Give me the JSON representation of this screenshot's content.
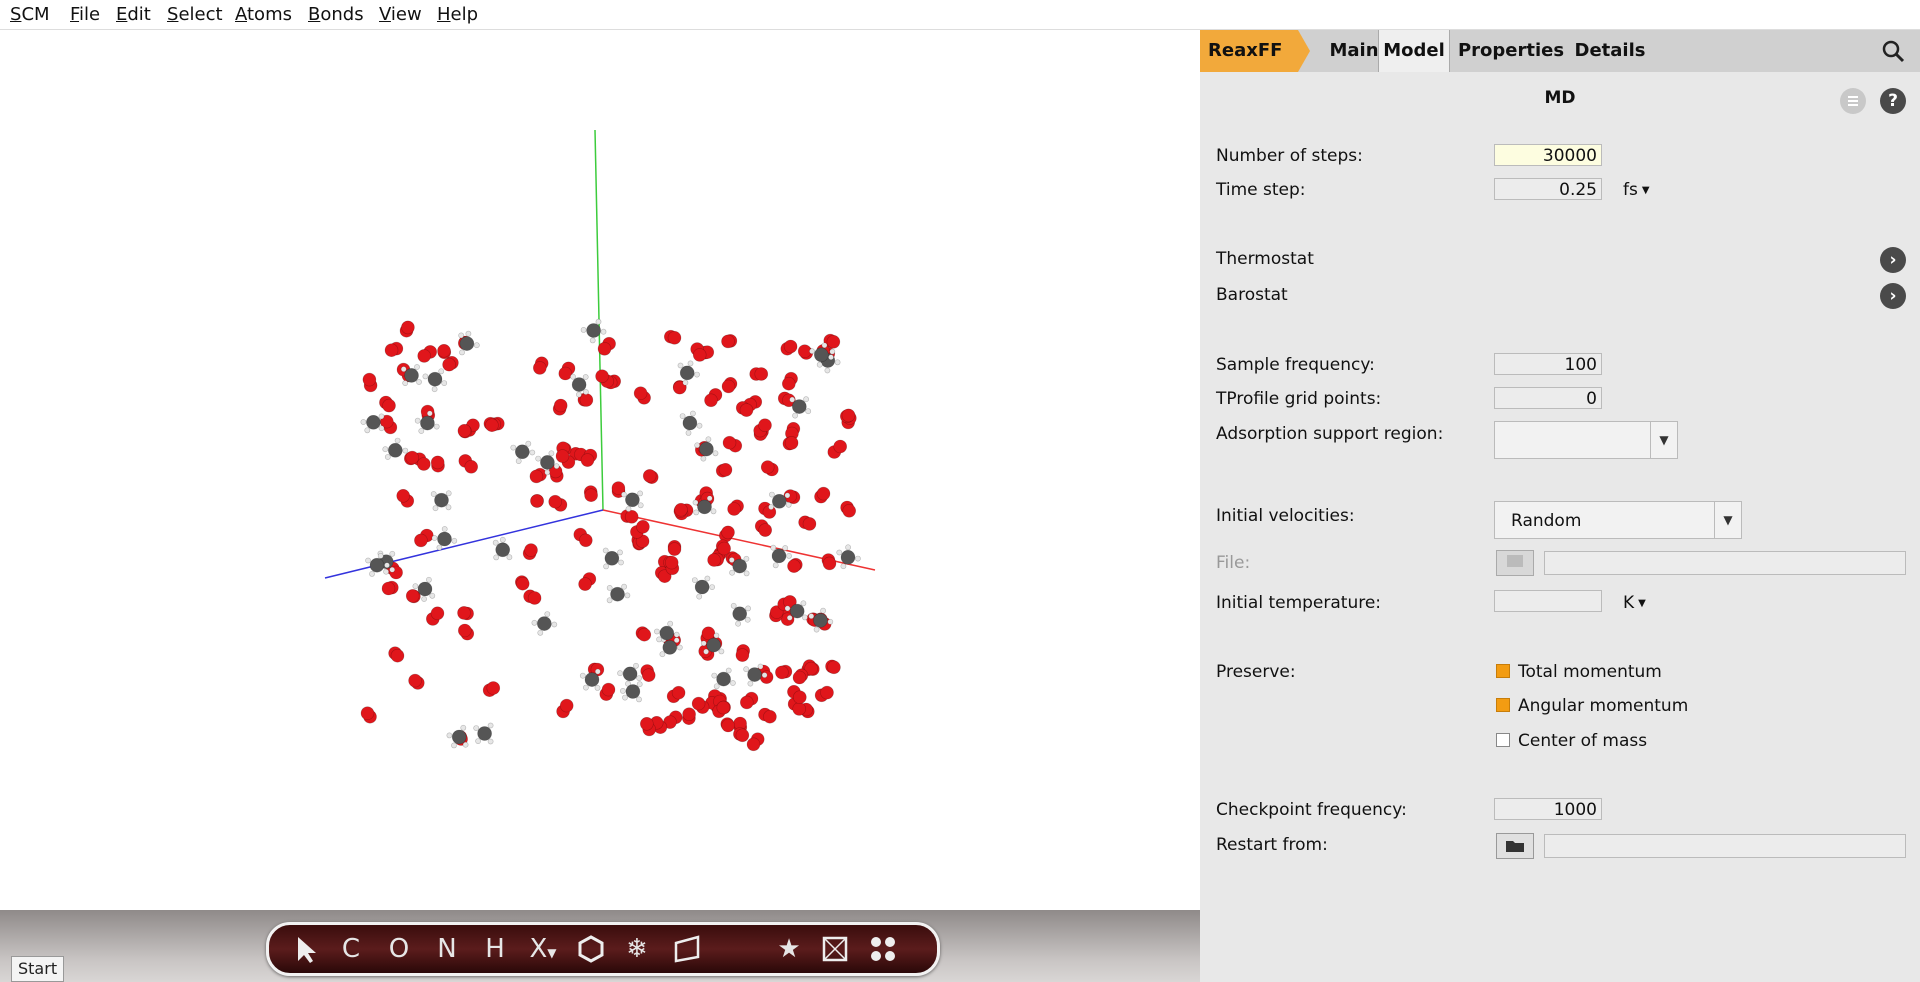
{
  "menu": [
    "SCM",
    "File",
    "Edit",
    "Select",
    "Atoms",
    "Bonds",
    "View",
    "Help"
  ],
  "toolbar": {
    "tools": [
      "select-arrow",
      "C",
      "O",
      "N",
      "H",
      "X",
      "ring",
      "snowflake",
      "plane",
      "star",
      "cube",
      "dots"
    ]
  },
  "start_label": "Start",
  "tabs": [
    "ReaxFF",
    "Main",
    "Model",
    "Properties",
    "Details"
  ],
  "section_title": "MD",
  "icons": {
    "menu": "list-icon",
    "help": "?",
    "search": "search-icon"
  },
  "fields": {
    "num_steps": {
      "label": "Number of steps:",
      "value": "30000"
    },
    "time_step": {
      "label": "Time step:",
      "value": "0.25",
      "unit": "fs"
    },
    "thermostat": "Thermostat",
    "barostat": "Barostat",
    "sample_freq": {
      "label": "Sample frequency:",
      "value": "100"
    },
    "tprofile": {
      "label": "TProfile grid points:",
      "value": "0"
    },
    "adsorption": {
      "label": "Adsorption support region:",
      "value": ""
    },
    "init_vel": {
      "label": "Initial velocities:",
      "value": "Random"
    },
    "file": {
      "label": "File:"
    },
    "init_temp": {
      "label": "Initial temperature:",
      "value": "",
      "unit": "K"
    },
    "preserve": {
      "label": "Preserve:",
      "options": [
        {
          "label": "Total momentum",
          "checked": true
        },
        {
          "label": "Angular momentum",
          "checked": true
        },
        {
          "label": "Center of mass",
          "checked": false
        }
      ]
    },
    "checkpoint": {
      "label": "Checkpoint frequency:",
      "value": "1000"
    },
    "restart": {
      "label": "Restart from:"
    }
  },
  "colors": {
    "accent": "#f2a93b",
    "oxygen": "#e0161b",
    "carbon": "#555555",
    "hydrogen": "#e6e6e6"
  }
}
